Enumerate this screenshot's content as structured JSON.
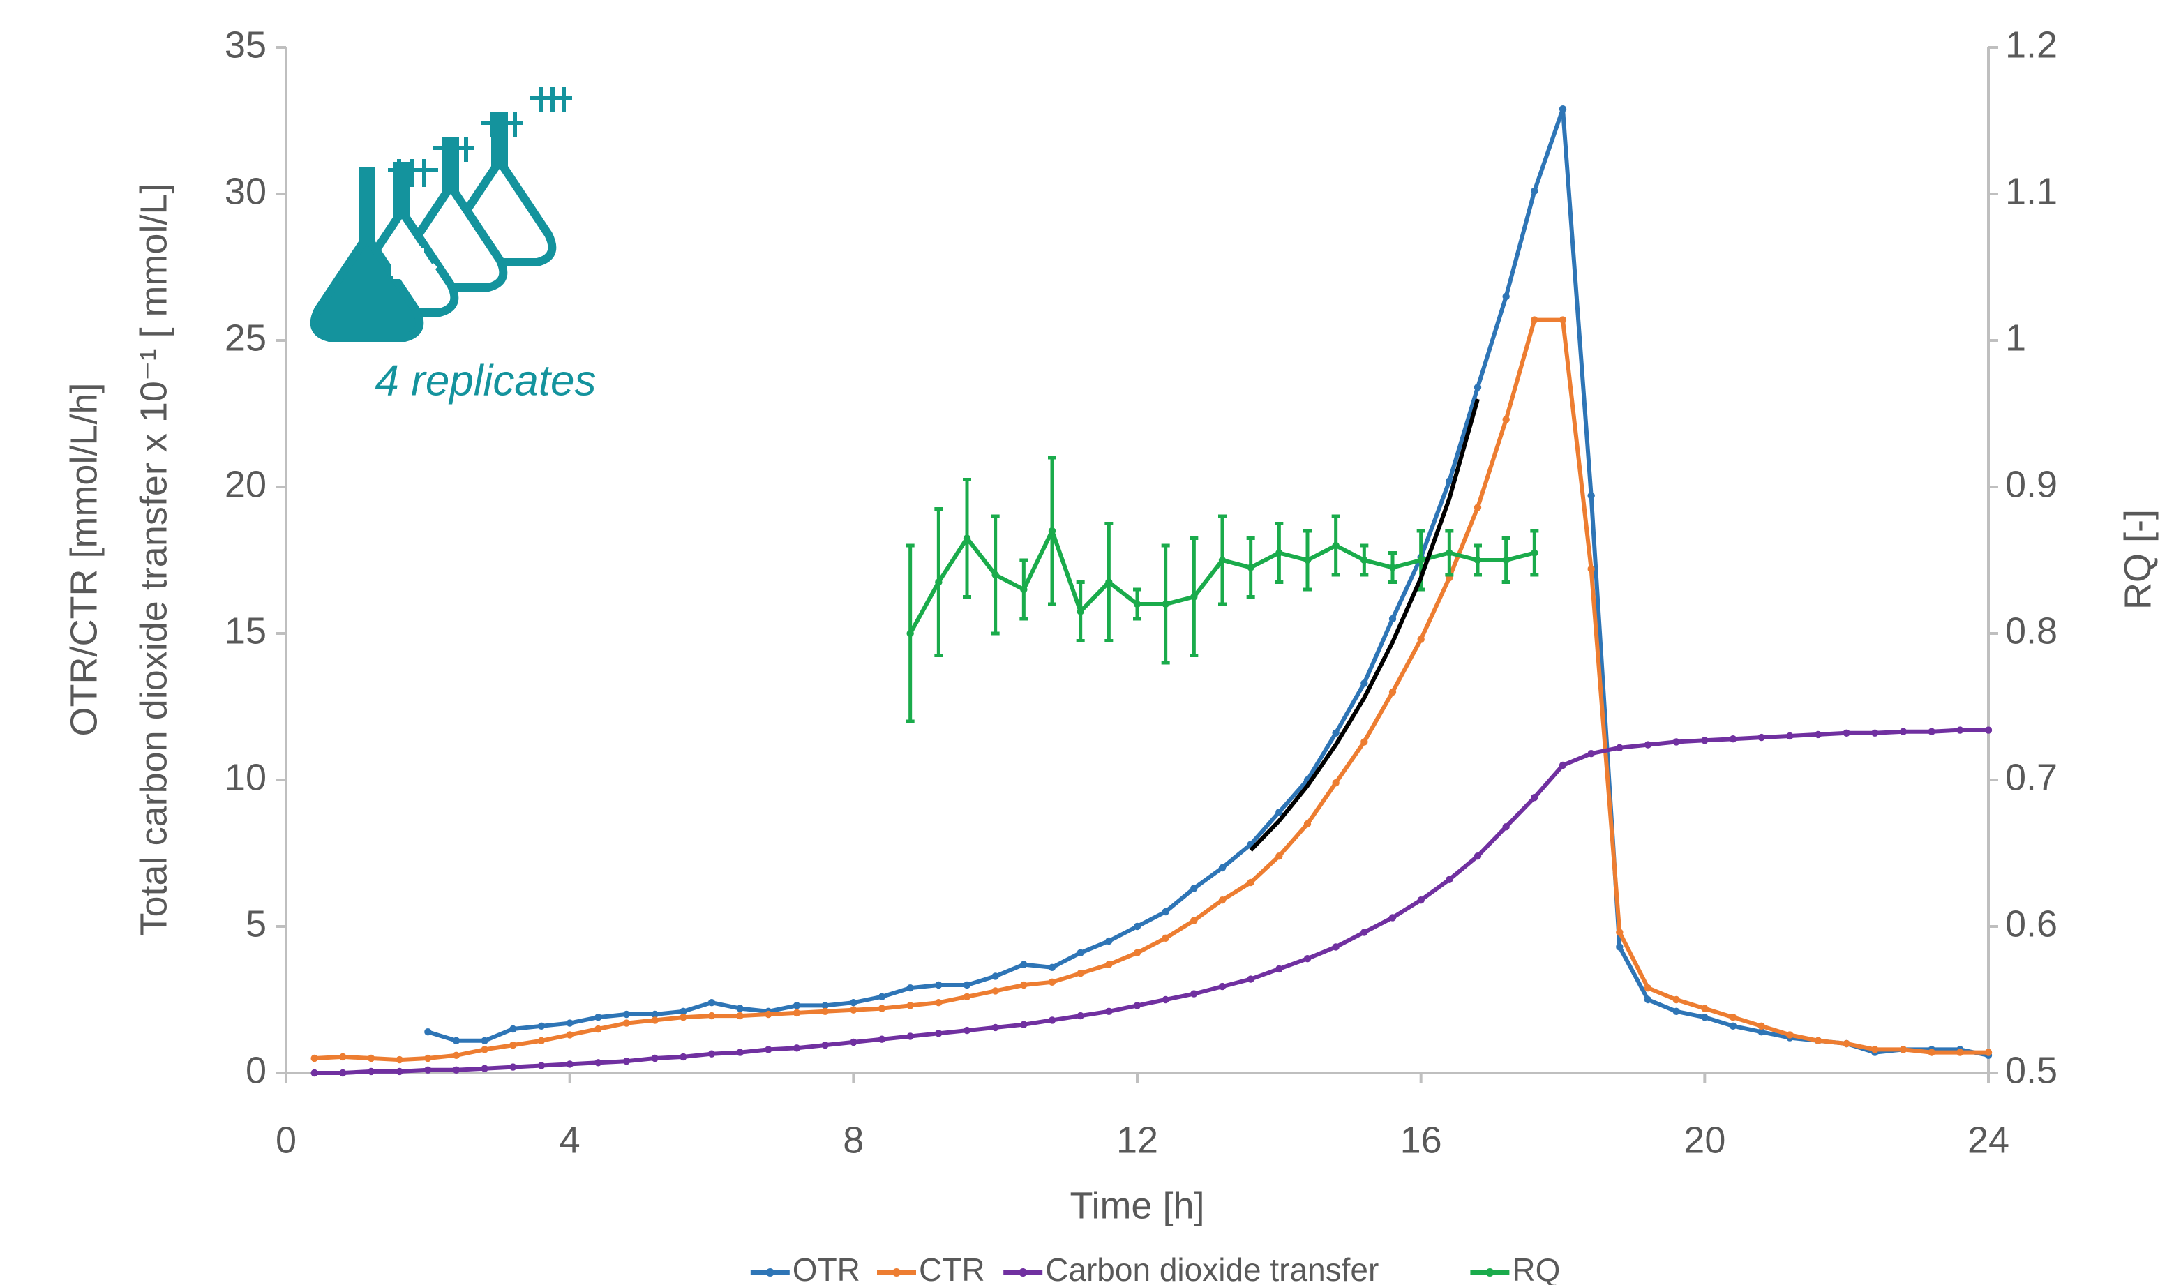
{
  "chart_data": {
    "type": "line",
    "annotation": "4 replicates",
    "xlabel": "Time   [h]",
    "ylabel": [
      "OTR/CTR   [mmol/L/h]",
      "Total carbon dioxide  transfer  x 10⁻¹  [ mmol/L]"
    ],
    "y2label": "RQ   [-]",
    "xlim": [
      0,
      24
    ],
    "xticks": [
      0,
      4,
      8,
      12,
      16,
      20,
      24
    ],
    "ylim": [
      0,
      35
    ],
    "yticks": [
      0,
      5,
      10,
      15,
      20,
      25,
      30,
      35
    ],
    "y2lim": [
      0.5,
      1.2
    ],
    "y2ticks": [
      0.5,
      0.6,
      0.7,
      0.8,
      0.9,
      1,
      1.1,
      1.2
    ],
    "legend": "bottom",
    "series": [
      {
        "name": "OTR",
        "color": "#2e75b6",
        "axis": "y",
        "x": [
          2.0,
          2.4,
          2.8,
          3.2,
          3.6,
          4.0,
          4.4,
          4.8,
          5.2,
          5.6,
          6.0,
          6.4,
          6.8,
          7.2,
          7.6,
          8.0,
          8.4,
          8.8,
          9.2,
          9.6,
          10.0,
          10.4,
          10.8,
          11.2,
          11.6,
          12.0,
          12.4,
          12.8,
          13.2,
          13.6,
          14.0,
          14.4,
          14.8,
          15.2,
          15.6,
          16.0,
          16.4,
          16.8,
          17.2,
          17.6,
          18.0,
          18.4,
          18.8,
          19.2,
          19.6,
          20.0,
          20.4,
          20.8,
          21.2,
          21.6,
          22.0,
          22.4,
          22.8,
          23.2,
          23.6,
          24.0
        ],
        "values": [
          1.4,
          1.1,
          1.1,
          1.5,
          1.6,
          1.7,
          1.9,
          2.0,
          2.0,
          2.1,
          2.4,
          2.2,
          2.1,
          2.3,
          2.3,
          2.4,
          2.6,
          2.9,
          3.0,
          3.0,
          3.3,
          3.7,
          3.6,
          4.1,
          4.5,
          5.0,
          5.5,
          6.3,
          7.0,
          7.8,
          8.9,
          10.0,
          11.6,
          13.3,
          15.5,
          17.6,
          20.2,
          23.4,
          26.5,
          30.1,
          32.9,
          19.7,
          4.3,
          2.5,
          2.1,
          1.9,
          1.6,
          1.4,
          1.2,
          1.1,
          1.0,
          0.7,
          0.8,
          0.8,
          0.8,
          0.6
        ]
      },
      {
        "name": "CTR",
        "color": "#ed7d31",
        "axis": "y",
        "x": [
          0.4,
          0.8,
          1.2,
          1.6,
          2.0,
          2.4,
          2.8,
          3.2,
          3.6,
          4.0,
          4.4,
          4.8,
          5.2,
          5.6,
          6.0,
          6.4,
          6.8,
          7.2,
          7.6,
          8.0,
          8.4,
          8.8,
          9.2,
          9.6,
          10.0,
          10.4,
          10.8,
          11.2,
          11.6,
          12.0,
          12.4,
          12.8,
          13.2,
          13.6,
          14.0,
          14.4,
          14.8,
          15.2,
          15.6,
          16.0,
          16.4,
          16.8,
          17.2,
          17.6,
          18.0,
          18.4,
          18.8,
          19.2,
          19.6,
          20.0,
          20.4,
          20.8,
          21.2,
          21.6,
          22.0,
          22.4,
          22.8,
          23.2,
          23.6,
          24.0
        ],
        "values": [
          0.5,
          0.55,
          0.5,
          0.45,
          0.5,
          0.6,
          0.8,
          0.95,
          1.1,
          1.3,
          1.5,
          1.7,
          1.8,
          1.9,
          1.95,
          1.95,
          2.0,
          2.05,
          2.1,
          2.15,
          2.2,
          2.3,
          2.4,
          2.6,
          2.8,
          3.0,
          3.1,
          3.4,
          3.7,
          4.1,
          4.6,
          5.2,
          5.9,
          6.5,
          7.4,
          8.5,
          9.9,
          11.3,
          13.0,
          14.8,
          16.9,
          19.3,
          22.3,
          25.7,
          25.7,
          17.2,
          4.8,
          2.9,
          2.5,
          2.2,
          1.9,
          1.6,
          1.3,
          1.1,
          1.0,
          0.8,
          0.8,
          0.7,
          0.7,
          0.7
        ]
      },
      {
        "name": "Carbon dioxide transfer",
        "color": "#7030a0",
        "axis": "y",
        "x": [
          0.4,
          0.8,
          1.2,
          1.6,
          2.0,
          2.4,
          2.8,
          3.2,
          3.6,
          4.0,
          4.4,
          4.8,
          5.2,
          5.6,
          6.0,
          6.4,
          6.8,
          7.2,
          7.6,
          8.0,
          8.4,
          8.8,
          9.2,
          9.6,
          10.0,
          10.4,
          10.8,
          11.2,
          11.6,
          12.0,
          12.4,
          12.8,
          13.2,
          13.6,
          14.0,
          14.4,
          14.8,
          15.2,
          15.6,
          16.0,
          16.4,
          16.8,
          17.2,
          17.6,
          18.0,
          18.4,
          18.8,
          19.2,
          19.6,
          20.0,
          20.4,
          20.8,
          21.2,
          21.6,
          22.0,
          22.4,
          22.8,
          23.2,
          23.6,
          24.0
        ],
        "values": [
          0,
          0,
          0.05,
          0.05,
          0.1,
          0.1,
          0.15,
          0.2,
          0.25,
          0.3,
          0.35,
          0.4,
          0.5,
          0.55,
          0.65,
          0.7,
          0.8,
          0.85,
          0.95,
          1.05,
          1.15,
          1.25,
          1.35,
          1.45,
          1.55,
          1.65,
          1.8,
          1.95,
          2.1,
          2.3,
          2.5,
          2.7,
          2.95,
          3.2,
          3.55,
          3.9,
          4.3,
          4.8,
          5.3,
          5.9,
          6.6,
          7.4,
          8.4,
          9.4,
          10.5,
          10.9,
          11.1,
          11.2,
          11.3,
          11.35,
          11.4,
          11.45,
          11.5,
          11.55,
          11.6,
          11.6,
          11.65,
          11.65,
          11.7,
          11.7
        ]
      },
      {
        "name": "RQ",
        "color": "#1aab4b",
        "axis": "y2",
        "x": [
          8.8,
          9.2,
          9.6,
          10.0,
          10.4,
          10.8,
          11.2,
          11.6,
          12.0,
          12.4,
          12.8,
          13.2,
          13.6,
          14.0,
          14.4,
          14.8,
          15.2,
          15.6,
          16.0,
          16.4,
          16.8,
          17.2,
          17.6
        ],
        "values": [
          0.8,
          0.835,
          0.865,
          0.84,
          0.83,
          0.87,
          0.815,
          0.835,
          0.82,
          0.82,
          0.825,
          0.85,
          0.845,
          0.855,
          0.85,
          0.86,
          0.85,
          0.845,
          0.85,
          0.855,
          0.85,
          0.85,
          0.855
        ],
        "errors": [
          0.06,
          0.05,
          0.04,
          0.04,
          0.02,
          0.05,
          0.02,
          0.04,
          0.01,
          0.04,
          0.04,
          0.03,
          0.02,
          0.02,
          0.02,
          0.02,
          0.01,
          0.01,
          0.02,
          0.015,
          0.01,
          0.015,
          0.015
        ]
      }
    ],
    "fit": {
      "color": "#000000",
      "x": [
        13.6,
        14.0,
        14.4,
        14.8,
        15.2,
        15.6,
        16.0,
        16.4,
        16.8
      ],
      "values": [
        7.6,
        8.6,
        9.8,
        11.2,
        12.8,
        14.7,
        16.9,
        19.6,
        23.0
      ]
    }
  }
}
